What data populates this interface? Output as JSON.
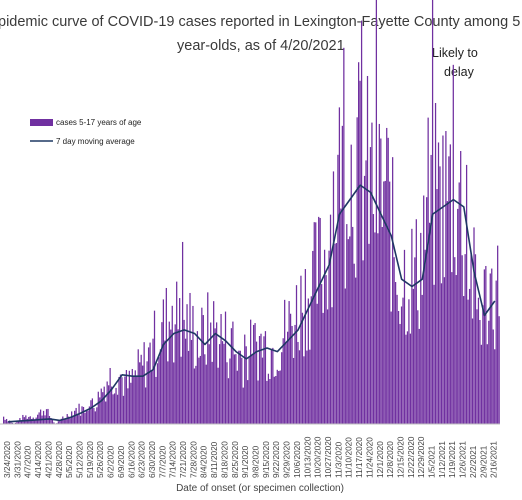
{
  "title": {
    "line1": "pidemic curve of COVID-19 cases reported in Lexington-Fayette County among 5",
    "line2": "year-olds, as of 4/20/2021"
  },
  "annotation": {
    "line1": "Likely to",
    "line2": "delay"
  },
  "chart_data": {
    "type": "bar",
    "xlabel": "Date of onset (or specimen collection)",
    "legend_placement": "top-left",
    "x_tick_labels": [
      "3/24/2020",
      "3/31/2020",
      "4/7/2020",
      "4/14/2020",
      "4/21/2020",
      "4/28/2020",
      "5/5/2020",
      "5/12/2020",
      "5/19/2020",
      "5/26/2020",
      "6/2/2020",
      "6/9/2020",
      "6/16/2020",
      "6/23/2020",
      "6/30/2020",
      "7/7/2020",
      "7/14/2020",
      "7/21/2020",
      "7/28/2020",
      "8/4/2020",
      "8/11/2020",
      "8/18/2020",
      "8/25/2020",
      "9/1/2020",
      "9/8/2020",
      "9/15/2020",
      "9/22/2020",
      "9/29/2020",
      "10/6/2020",
      "10/13/2020",
      "10/20/2020",
      "10/27/2020",
      "11/3/2020",
      "11/10/2020",
      "11/17/2020",
      "11/24/2020",
      "12/1/2020",
      "12/8/2020",
      "12/15/2020",
      "12/22/2020",
      "12/29/2020",
      "1/5/2021",
      "1/12/2021",
      "1/19/2021",
      "1/26/2021",
      "2/2/2021",
      "2/9/2021",
      "2/16/2021"
    ],
    "series": [
      {
        "name": "cases 5-17 years of age",
        "type": "bar",
        "color": "#7030a0",
        "weekly_values": [
          1,
          0,
          1,
          1,
          2,
          0,
          1,
          2,
          2,
          3,
          6,
          7,
          5,
          7,
          9,
          12,
          14,
          14,
          13,
          11,
          13,
          12,
          10,
          9,
          10,
          11,
          10,
          12,
          14,
          17,
          19,
          22,
          32,
          33,
          35,
          33,
          31,
          31,
          20,
          20,
          20,
          30,
          30,
          31,
          31,
          21,
          15,
          18
        ]
      },
      {
        "name": "7 day moving average",
        "type": "line",
        "color": "#1f3864",
        "weekly_values": [
          0.3,
          0.4,
          0.5,
          0.6,
          0.7,
          0.5,
          0.9,
          1.5,
          2.2,
          3.2,
          4.8,
          6.8,
          6.6,
          6.6,
          7.5,
          11,
          12.5,
          13,
          12.5,
          11,
          12.5,
          11.5,
          10,
          9,
          10,
          10.5,
          10,
          11.5,
          13,
          16,
          19,
          22,
          29,
          31,
          33,
          32,
          29,
          26,
          20,
          19,
          20,
          29,
          30,
          31,
          30,
          21,
          15,
          17
        ]
      }
    ]
  }
}
